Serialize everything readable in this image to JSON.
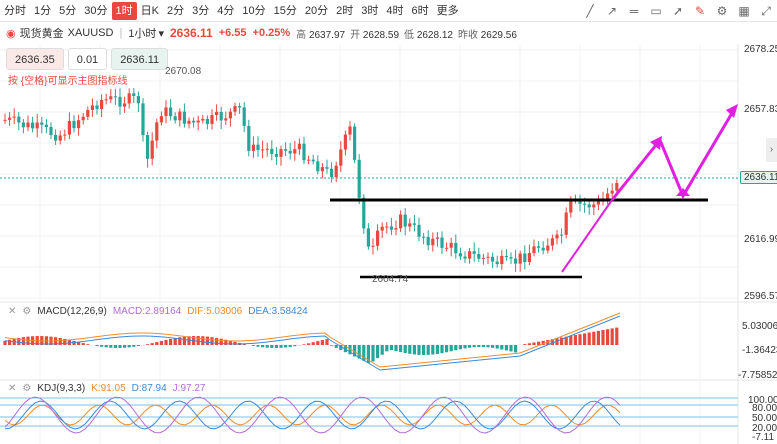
{
  "toolbar": {
    "timeframes": [
      "分时",
      "1分",
      "5分",
      "30分",
      "1时",
      "日K",
      "2分",
      "3分",
      "4分",
      "10分",
      "15分",
      "20分",
      "2时",
      "3时",
      "4时",
      "6时",
      "更多"
    ],
    "active_index": 4,
    "icons": [
      "trend-line-icon",
      "ray-icon",
      "horizontal-line-icon",
      "rectangle-icon",
      "arrow-icon",
      "eraser-icon",
      "settings-icon",
      "layout-icon",
      "fullscreen-icon"
    ]
  },
  "info": {
    "symbol": "现货黄金",
    "code": "XAUUSD",
    "interval": "1小时",
    "price": "2636.11",
    "change": "+6.55",
    "change_pct": "+0.25%",
    "high_label": "高",
    "high": "2637.97",
    "open_label": "开",
    "open": "2628.59",
    "low_label": "低",
    "low": "2628.12",
    "prev_label": "昨收",
    "prev": "2629.56"
  },
  "trade": {
    "bid": "2636.35",
    "qty": "0.01",
    "ask": "2636.11"
  },
  "hint": "按 {空格}可显示主图指标线",
  "annotations": {
    "peak": "2670.08",
    "trough": "2604.74"
  },
  "price_axis": {
    "labels": [
      "2678.25",
      "2657.83",
      "2636.11",
      "2616.99",
      "2596.57"
    ]
  },
  "macd": {
    "title": "MACD(12,26,9)",
    "macd": "MACD:2.89164",
    "dif": "DIF:5.03006",
    "dea": "DEA:3.58424",
    "axis": [
      "5.03006",
      "-1.36423",
      "-7.75852"
    ]
  },
  "kdj": {
    "title": "KDJ(9,3,3)",
    "k": "K:91.05",
    "d": "D:87.94",
    "j": "J:97.27",
    "axis": [
      "100.00",
      "80.00",
      "50.00",
      "20.00",
      "-7.11"
    ]
  },
  "colors": {
    "up": "#e8483f",
    "down": "#26a69a",
    "accent": "#e8483f",
    "pink": "#e020e0"
  }
}
